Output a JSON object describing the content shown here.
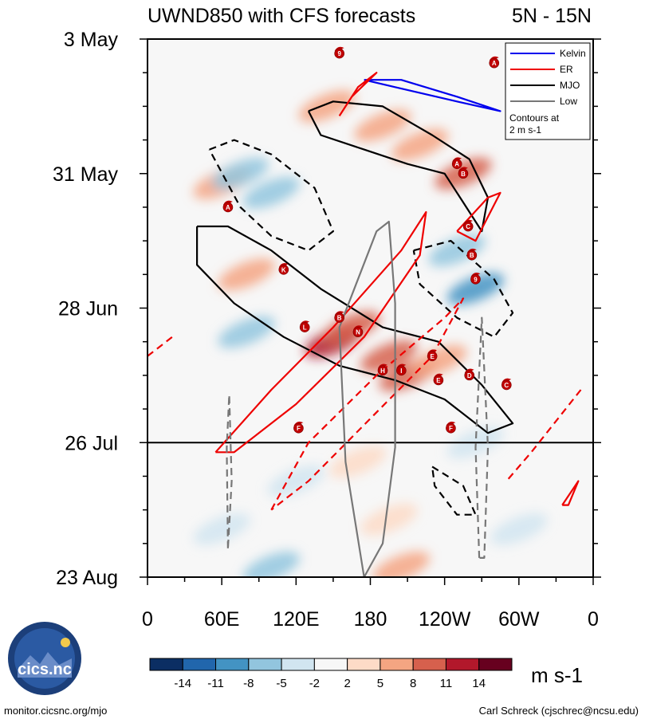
{
  "chart_data": {
    "type": "heatmap",
    "title": "UWND850 with CFS forecasts",
    "region": "5N - 15N",
    "y_axis": {
      "labels": [
        "3 May",
        "31 May",
        "28 Jun",
        "26 Jul",
        "23 Aug"
      ],
      "day_values": [
        0,
        28,
        56,
        84,
        112
      ],
      "range": [
        0,
        112
      ],
      "forecast_start_day": 84
    },
    "x_axis": {
      "labels": [
        "0",
        "60E",
        "120E",
        "180",
        "120W",
        "60W",
        "0"
      ],
      "lon_values": [
        0,
        60,
        120,
        180,
        240,
        300,
        360
      ],
      "range": [
        0,
        360
      ]
    },
    "legend": {
      "entries": [
        {
          "name": "Kelvin",
          "color": "#0000ee"
        },
        {
          "name": "ER",
          "color": "#ee0000"
        },
        {
          "name": "MJO",
          "color": "#000000"
        },
        {
          "name": "Low",
          "color": "#777777"
        }
      ],
      "note_line1": "Contours at",
      "note_line2": "2 m s-1"
    },
    "colorbar": {
      "labels": [
        "-14",
        "-11",
        "-8",
        "-5",
        "-2",
        "2",
        "5",
        "8",
        "11",
        "14"
      ],
      "colors": [
        "#0b2e63",
        "#2166ac",
        "#4393c3",
        "#92c5de",
        "#d1e5f0",
        "#f7f7f7",
        "#fddbc7",
        "#f4a582",
        "#d6604d",
        "#b2182b",
        "#67001f"
      ],
      "units": "m s-1"
    },
    "anomalies": [
      {
        "lon": 150,
        "day": 63,
        "value": 14
      },
      {
        "lon": 195,
        "day": 66,
        "value": 10
      },
      {
        "lon": 210,
        "day": 70,
        "value": 9
      },
      {
        "lon": 165,
        "day": 60,
        "value": 10
      },
      {
        "lon": 235,
        "day": 67,
        "value": 8
      },
      {
        "lon": 255,
        "day": 28,
        "value": 9
      },
      {
        "lon": 220,
        "day": 22,
        "value": 7
      },
      {
        "lon": 145,
        "day": 14,
        "value": 8
      },
      {
        "lon": 190,
        "day": 18,
        "value": 6
      },
      {
        "lon": 60,
        "day": 30,
        "value": 6
      },
      {
        "lon": 80,
        "day": 49,
        "value": 6
      },
      {
        "lon": 170,
        "day": 88,
        "value": 5
      },
      {
        "lon": 195,
        "day": 100,
        "value": 5
      },
      {
        "lon": 205,
        "day": 110,
        "value": 6
      },
      {
        "lon": 265,
        "day": 52,
        "value": -9
      },
      {
        "lon": 75,
        "day": 28,
        "value": -7
      },
      {
        "lon": 100,
        "day": 32,
        "value": -5
      },
      {
        "lon": 80,
        "day": 61,
        "value": -7
      },
      {
        "lon": 250,
        "day": 44,
        "value": -6
      },
      {
        "lon": 60,
        "day": 102,
        "value": -4
      },
      {
        "lon": 100,
        "day": 110,
        "value": -5
      },
      {
        "lon": 300,
        "day": 102,
        "value": -4
      },
      {
        "lon": 265,
        "day": 84,
        "value": -3
      },
      {
        "lon": 120,
        "day": 92,
        "value": -3
      }
    ],
    "contours": [
      {
        "wave": "Kelvin",
        "dashed": false,
        "points": [
          [
            175,
            8.5
          ],
          [
            200,
            10
          ],
          [
            250,
            13
          ],
          [
            285,
            15
          ],
          [
            250,
            12
          ],
          [
            205,
            8.5
          ],
          [
            175,
            8.5
          ]
        ]
      },
      {
        "wave": "MJO",
        "dashed": false,
        "points": [
          [
            130,
            15
          ],
          [
            150,
            13
          ],
          [
            190,
            14
          ],
          [
            230,
            20
          ],
          [
            260,
            25
          ],
          [
            275,
            33
          ],
          [
            270,
            40
          ],
          [
            255,
            34
          ],
          [
            240,
            28
          ],
          [
            210,
            26
          ],
          [
            175,
            23
          ],
          [
            140,
            20
          ],
          [
            130,
            15
          ]
        ]
      },
      {
        "wave": "MJO",
        "dashed": false,
        "points": [
          [
            40,
            39
          ],
          [
            65,
            39
          ],
          [
            100,
            44
          ],
          [
            140,
            52
          ],
          [
            190,
            60
          ],
          [
            235,
            63
          ],
          [
            270,
            72
          ],
          [
            295,
            80
          ],
          [
            275,
            82
          ],
          [
            240,
            75
          ],
          [
            200,
            71
          ],
          [
            155,
            68
          ],
          [
            110,
            62
          ],
          [
            70,
            55
          ],
          [
            40,
            47
          ],
          [
            40,
            39
          ]
        ]
      },
      {
        "wave": "MJO",
        "dashed": true,
        "points": [
          [
            50,
            23
          ],
          [
            70,
            21
          ],
          [
            100,
            24
          ],
          [
            135,
            31
          ],
          [
            150,
            40
          ],
          [
            130,
            44
          ],
          [
            100,
            41
          ],
          [
            75,
            35
          ],
          [
            50,
            23
          ]
        ]
      },
      {
        "wave": "MJO",
        "dashed": true,
        "points": [
          [
            215,
            44
          ],
          [
            245,
            42
          ],
          [
            280,
            50
          ],
          [
            295,
            57
          ],
          [
            280,
            62
          ],
          [
            250,
            58
          ],
          [
            220,
            51
          ],
          [
            215,
            44
          ]
        ]
      },
      {
        "wave": "MJO",
        "dashed": true,
        "points": [
          [
            230,
            89
          ],
          [
            255,
            93
          ],
          [
            265,
            99
          ],
          [
            250,
            99
          ],
          [
            232,
            93
          ],
          [
            230,
            89
          ]
        ]
      },
      {
        "wave": "ER",
        "dashed": false,
        "points": [
          [
            155,
            16
          ],
          [
            170,
            10
          ],
          [
            185,
            7
          ],
          [
            165,
            12
          ],
          [
            155,
            16
          ]
        ]
      },
      {
        "wave": "ER",
        "dashed": false,
        "points": [
          [
            250,
            40
          ],
          [
            275,
            33
          ],
          [
            285,
            32
          ],
          [
            265,
            42
          ],
          [
            250,
            40
          ]
        ]
      },
      {
        "wave": "ER",
        "dashed": false,
        "points": [
          [
            55,
            86
          ],
          [
            100,
            73
          ],
          [
            150,
            60
          ],
          [
            205,
            44
          ],
          [
            225,
            36
          ],
          [
            220,
            45
          ],
          [
            175,
            62
          ],
          [
            120,
            76
          ],
          [
            70,
            86
          ],
          [
            55,
            86
          ]
        ]
      },
      {
        "wave": "ER",
        "dashed": false,
        "points": [
          [
            335,
            97
          ],
          [
            348,
            92
          ],
          [
            340,
            97
          ],
          [
            335,
            97
          ]
        ]
      },
      {
        "wave": "ER",
        "dashed": true,
        "points": [
          [
            100,
            98
          ],
          [
            130,
            84
          ],
          [
            185,
            70
          ],
          [
            240,
            58
          ],
          [
            255,
            54
          ],
          [
            230,
            66
          ],
          [
            180,
            79
          ],
          [
            130,
            92
          ],
          [
            100,
            98
          ]
        ]
      },
      {
        "wave": "ER",
        "dashed": true,
        "points": [
          [
            350,
            73
          ],
          [
            310,
            86
          ],
          [
            290,
            92
          ]
        ]
      },
      {
        "wave": "ER",
        "dashed": true,
        "points": [
          [
            0,
            66
          ],
          [
            20,
            62
          ]
        ]
      },
      {
        "wave": "Low",
        "dashed": false,
        "points": [
          [
            175,
            112
          ],
          [
            160,
            88
          ],
          [
            155,
            60
          ],
          [
            170,
            50
          ],
          [
            185,
            40
          ],
          [
            195,
            38
          ],
          [
            200,
            55
          ],
          [
            200,
            85
          ],
          [
            190,
            105
          ],
          [
            175,
            112
          ]
        ]
      },
      {
        "wave": "Low",
        "dashed": true,
        "points": [
          [
            268,
            108
          ],
          [
            265,
            85
          ],
          [
            270,
            58
          ],
          [
            275,
            85
          ],
          [
            272,
            108
          ],
          [
            268,
            108
          ]
        ]
      },
      {
        "wave": "Low",
        "dashed": true,
        "points": [
          [
            65,
            106
          ],
          [
            64,
            85
          ],
          [
            66,
            74
          ],
          [
            68,
            92
          ],
          [
            65,
            106
          ]
        ]
      }
    ],
    "storms": [
      {
        "letter": "A",
        "lon": 65,
        "day": 35
      },
      {
        "letter": "A",
        "lon": 250,
        "day": 26
      },
      {
        "letter": "A",
        "lon": 280,
        "day": 5
      },
      {
        "letter": "B",
        "lon": 155,
        "day": 58
      },
      {
        "letter": "B",
        "lon": 255,
        "day": 28
      },
      {
        "letter": "B",
        "lon": 262,
        "day": 45
      },
      {
        "letter": "C",
        "lon": 259,
        "day": 39
      },
      {
        "letter": "C",
        "lon": 290,
        "day": 72
      },
      {
        "letter": "D",
        "lon": 260,
        "day": 70
      },
      {
        "letter": "E",
        "lon": 230,
        "day": 66
      },
      {
        "letter": "E",
        "lon": 235,
        "day": 71
      },
      {
        "letter": "F",
        "lon": 122,
        "day": 81
      },
      {
        "letter": "F",
        "lon": 245,
        "day": 81
      },
      {
        "letter": "H",
        "lon": 190,
        "day": 69
      },
      {
        "letter": "I",
        "lon": 205,
        "day": 69
      },
      {
        "letter": "K",
        "lon": 110,
        "day": 48
      },
      {
        "letter": "L",
        "lon": 127,
        "day": 60
      },
      {
        "letter": "N",
        "lon": 170,
        "day": 61
      },
      {
        "letter": "9",
        "lon": 155,
        "day": 3
      },
      {
        "letter": "9",
        "lon": 265,
        "day": 50
      }
    ]
  },
  "logo_text": "cics.nc",
  "footer_left": "monitor.cicsnc.org/mjo",
  "footer_right": "Carl Schreck (cjschrec@ncsu.edu)"
}
